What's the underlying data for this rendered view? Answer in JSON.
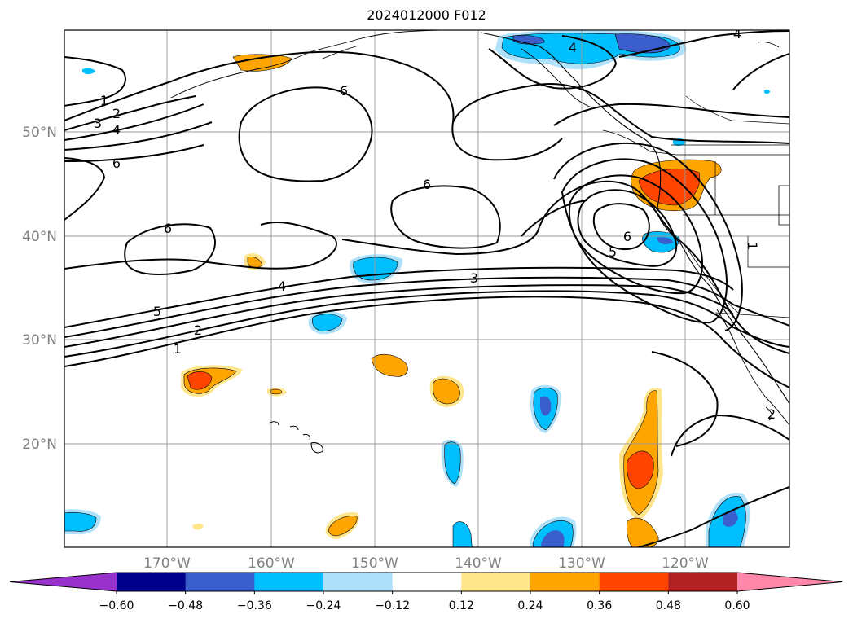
{
  "title": "2024012000 F012",
  "lat_ticks": [
    "20°N",
    "30°N",
    "40°N",
    "50°N"
  ],
  "lon_ticks": [
    "170°W",
    "160°W",
    "150°W",
    "140°W",
    "130°W",
    "120°W"
  ],
  "contour_labels": [
    "1",
    "2",
    "3",
    "4",
    "5",
    "6"
  ],
  "colorbar": {
    "ticks": [
      "−0.60",
      "−0.48",
      "−0.36",
      "−0.24",
      "−0.12",
      "0.12",
      "0.24",
      "0.36",
      "0.48",
      "0.60"
    ],
    "colors": [
      "#9932cc",
      "#00008b",
      "#3a5fcd",
      "#00bfff",
      "#afe1fa",
      "#ffffff",
      "#ffe68c",
      "#ffa500",
      "#ff4500",
      "#b22222",
      "#ff88aa"
    ]
  }
}
